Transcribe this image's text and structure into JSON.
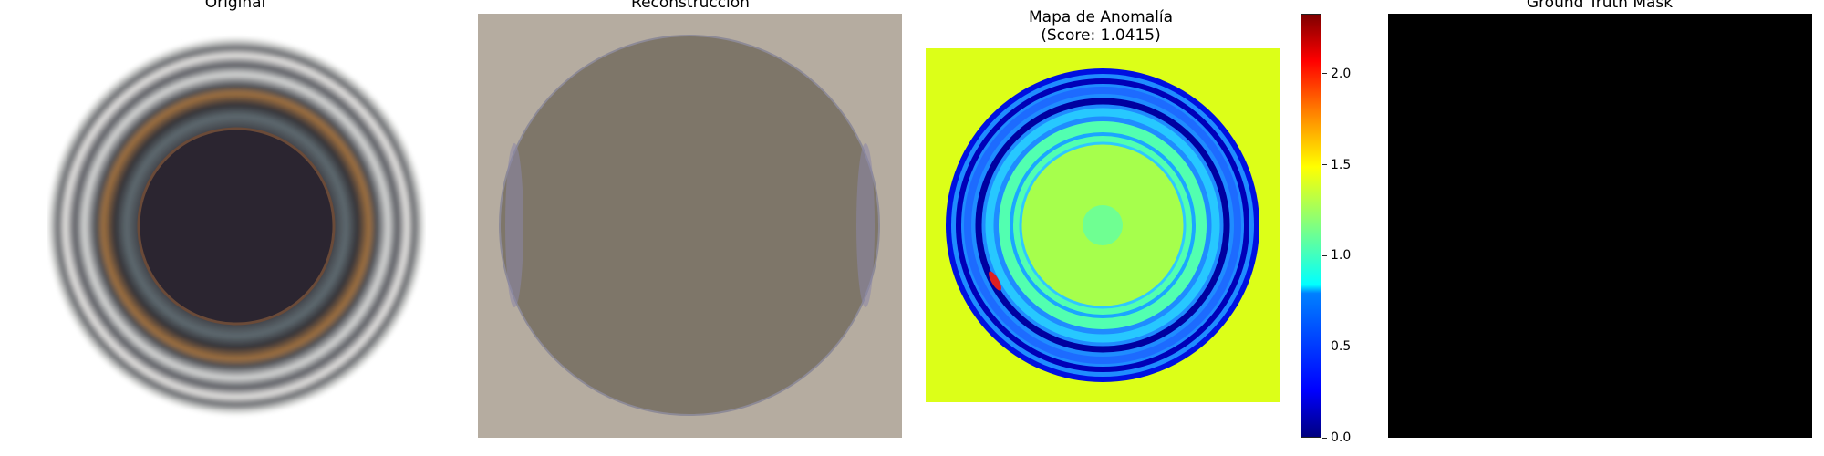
{
  "panels": {
    "original": {
      "title": "Original"
    },
    "reconstruction": {
      "title": "Reconstrucción"
    },
    "anomaly": {
      "title_line1": "Mapa de Anomalía",
      "title_line2": "(Score: 1.0415)"
    },
    "ground_truth": {
      "title": "Ground Truth Mask"
    }
  },
  "colorbar": {
    "min": 0.0,
    "max": 2.33,
    "colormap": "jet",
    "ticks": [
      "0.0",
      "0.5",
      "1.0",
      "1.5",
      "2.0"
    ]
  },
  "colors": {
    "recon_background": "#b5aca0",
    "recon_disk": "#7e7669",
    "anomaly_background": "#dcff18",
    "mask": "#000000"
  }
}
